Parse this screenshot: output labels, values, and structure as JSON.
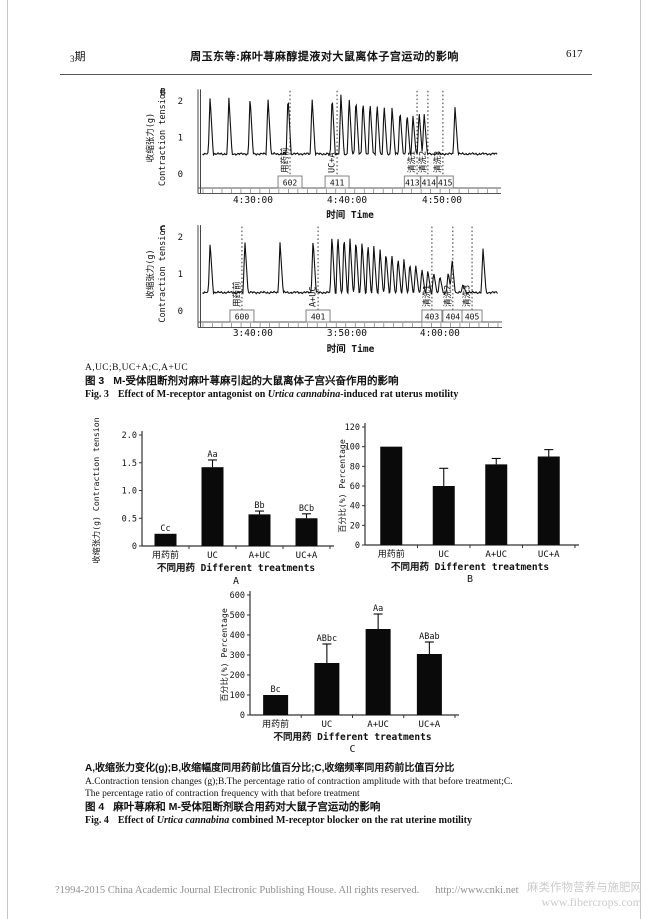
{
  "header": {
    "issue_no": "3",
    "issue_label": "期",
    "title": "周玉东等:麻叶荨麻醇提液对大鼠离体子宫运动的影响",
    "page_number": "617"
  },
  "figure3": {
    "line_abc": "A,UC;B,UC+A;C,A+UC",
    "cn_prefix": "图 3",
    "cn_text": "M-受体阻断剂对麻叶荨麻引起的大鼠离体子宫兴奋作用的影响",
    "en_prefix": "Fig. 3",
    "en_text_1": "Effect of M-receptor antagonist on ",
    "en_species": "Urtica cannabina",
    "en_text_2": "-induced rat uterus motility"
  },
  "figure4": {
    "cn_line": "A,收缩张力变化(g);B,收缩幅度同用药前比值百分比;C,收缩频率同用药前比值百分比",
    "en_line_1": "A.Contraction tension changes (g);B.The percentage ratio of contraction amplitude with that before treatment;C.",
    "en_line_2": "The percentage ratio of contraction frequency with that before treatment",
    "cn_prefix": "图 4",
    "cn_text": "麻叶荨麻和 M-受体阻断剂联合用药对大鼠子宫运动的影响",
    "en_prefix": "Fig. 4",
    "en_text_1": "Effect of ",
    "en_species": "Urtica cannabina",
    "en_text_2": " combined M-receptor blocker on the rat uterine motility"
  },
  "footer": {
    "copyright": "?1994-2015 China Academic Journal Electronic Publishing House. All rights reserved.",
    "url": "http://www.cnki.net",
    "watermark_line1": "麻类作物营养与施肥网",
    "watermark_line2": "www.fibercrops.com"
  },
  "chart_data": [
    {
      "type": "line",
      "panel": "B",
      "ylabel_cn": "收缩张力(g)",
      "ylabel_en": "Contraction tension",
      "yticks": [
        2,
        1,
        0
      ],
      "ylim": [
        0,
        2.3
      ],
      "baseline": 0.55,
      "xlabel": "时间 Time",
      "xticks": [
        {
          "label": "4:30:00",
          "x": 0.17
        },
        {
          "label": "4:40:00",
          "x": 0.49
        },
        {
          "label": "4:50:00",
          "x": 0.813
        }
      ],
      "events": [
        {
          "label": "用药前",
          "code": "602",
          "x": 0.296
        },
        {
          "label": "UC+A",
          "code": "411",
          "x": 0.456
        },
        {
          "label": "清洗1",
          "code": "413",
          "x": 0.728,
          "bx": 0.712,
          "bw": 16
        },
        {
          "label": "清洗2",
          "code": "414",
          "x": 0.765,
          "bx": 0.768,
          "bw": 16
        },
        {
          "label": "清洗3",
          "code": "415",
          "x": 0.816,
          "bx": 0.824,
          "bw": 16
        }
      ],
      "peaks": [
        [
          0.024,
          2.12
        ],
        [
          0.088,
          2.1
        ],
        [
          0.16,
          2.12
        ],
        [
          0.221,
          2.1
        ],
        [
          0.289,
          2.15
        ],
        [
          0.371,
          2.1
        ],
        [
          0.439,
          2.15
        ],
        [
          0.469,
          2.18
        ],
        [
          0.497,
          2.12
        ],
        [
          0.52,
          2.08
        ],
        [
          0.544,
          2.04
        ],
        [
          0.568,
          2.0
        ],
        [
          0.592,
          1.96
        ],
        [
          0.616,
          1.9
        ],
        [
          0.643,
          1.84
        ],
        [
          0.67,
          1.76
        ],
        [
          0.694,
          1.68
        ],
        [
          0.714,
          1.62
        ],
        [
          0.735,
          1.72
        ],
        [
          0.752,
          1.68
        ],
        [
          0.857,
          1.85
        ]
      ]
    },
    {
      "type": "line",
      "panel": "C",
      "ylabel_cn": "收缩张力(g)",
      "ylabel_en": "Contraction tension",
      "yticks": [
        2,
        1,
        0
      ],
      "ylim": [
        0,
        2.3
      ],
      "baseline": 0.5,
      "xlabel": "时间 Time",
      "xticks": [
        {
          "label": "3:40:00",
          "x": 0.169
        },
        {
          "label": "3:50:00",
          "x": 0.488
        },
        {
          "label": "4:00:00",
          "x": 0.803
        }
      ],
      "events": [
        {
          "label": "用药前",
          "code": "600",
          "x": 0.132
        },
        {
          "label": "A+UC",
          "code": "401",
          "x": 0.39
        },
        {
          "label": "清洗1",
          "code": "403",
          "x": 0.776,
          "bw": 20
        },
        {
          "label": "清洗2",
          "code": "404",
          "x": 0.847,
          "bw": 20
        },
        {
          "label": "清洗3",
          "code": "405",
          "x": 0.912,
          "bw": 20
        }
      ],
      "peaks": [
        [
          0.024,
          1.85
        ],
        [
          0.142,
          1.9
        ],
        [
          0.261,
          1.86
        ],
        [
          0.373,
          1.95
        ],
        [
          0.437,
          2.05
        ],
        [
          0.457,
          2.08
        ],
        [
          0.478,
          2.05
        ],
        [
          0.498,
          2.0
        ],
        [
          0.518,
          1.96
        ],
        [
          0.539,
          1.9
        ],
        [
          0.559,
          1.85
        ],
        [
          0.579,
          1.76
        ],
        [
          0.6,
          1.7
        ],
        [
          0.62,
          1.6
        ],
        [
          0.64,
          1.55
        ],
        [
          0.661,
          1.45
        ],
        [
          0.681,
          1.4
        ],
        [
          0.701,
          1.3
        ],
        [
          0.721,
          1.25
        ],
        [
          0.742,
          1.15
        ],
        [
          0.762,
          1.1
        ],
        [
          0.782,
          1.05
        ],
        [
          0.803,
          0.95
        ],
        [
          0.831,
          1.05
        ],
        [
          0.844,
          1.42
        ],
        [
          0.881,
          0.72
        ],
        [
          0.949,
          1.7
        ]
      ]
    },
    {
      "type": "bar",
      "panel": "A",
      "categories": [
        "用药前",
        "UC",
        "A+UC",
        "UC+A"
      ],
      "values": [
        0.22,
        1.42,
        0.57,
        0.5
      ],
      "errors": [
        0,
        0.13,
        0.06,
        0.08
      ],
      "sig_labels": [
        "Cc",
        "Aa",
        "Bb",
        "BCb"
      ],
      "ylabel": "收缩张力(g) Contraction tension",
      "xlabel": "不同用药 Different treatments",
      "ylim": [
        0,
        2.0
      ],
      "yticks": [
        0,
        0.5,
        1.0,
        1.5,
        2.0
      ],
      "ytick_labels": [
        "0",
        "0.5",
        "1.0",
        "1.5",
        "2.0"
      ]
    },
    {
      "type": "bar",
      "panel": "B",
      "categories": [
        "用药前",
        "UC",
        "A+UC",
        "UC+A"
      ],
      "values": [
        100,
        60,
        82,
        90
      ],
      "errors": [
        0,
        18,
        6,
        7
      ],
      "sig_labels": [
        "",
        "",
        "",
        ""
      ],
      "ylabel": "百分比(%) Percentage",
      "xlabel": "不同用药 Different treatments",
      "ylim": [
        0,
        120
      ],
      "yticks": [
        0,
        20,
        40,
        60,
        80,
        100,
        120
      ],
      "ytick_labels": [
        "0",
        "20",
        "40",
        "60",
        "80",
        "100",
        "120"
      ]
    },
    {
      "type": "bar",
      "panel": "C",
      "categories": [
        "用药前",
        "UC",
        "A+UC",
        "UC+A"
      ],
      "values": [
        100,
        260,
        430,
        305
      ],
      "errors": [
        0,
        95,
        75,
        60
      ],
      "sig_labels": [
        "Bc",
        "ABbc",
        "Aa",
        "ABab"
      ],
      "ylabel": "百分比(%) Percentage",
      "xlabel": "不同用药 Different treatments",
      "ylim": [
        0,
        600
      ],
      "yticks": [
        0,
        100,
        200,
        300,
        400,
        500,
        600
      ],
      "ytick_labels": [
        "0",
        "100",
        "200",
        "300",
        "400",
        "500",
        "600"
      ]
    }
  ]
}
